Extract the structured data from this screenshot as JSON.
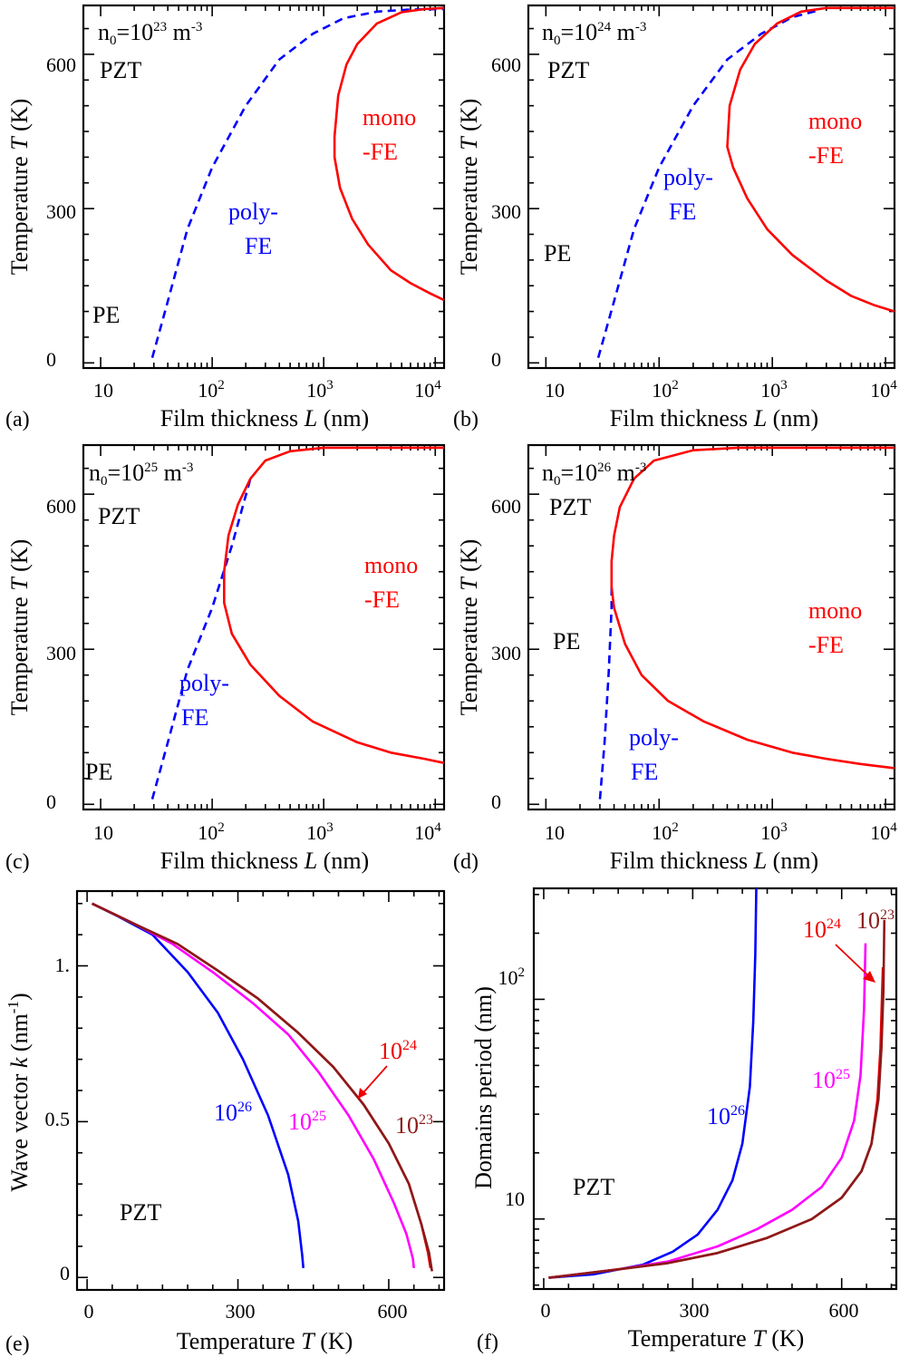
{
  "chart_data": [
    {
      "panel": "(a)",
      "type": "line",
      "xlabel": "Film thickness  L (nm)",
      "ylabel": "Temperature  T (K)",
      "x_scale": "log",
      "xlim": [
        7,
        12000
      ],
      "ylim": [
        -10,
        695
      ],
      "x_ticks": [
        "10",
        "10^2",
        "10^3",
        "10^4"
      ],
      "y_ticks": [
        "0",
        "300",
        "600"
      ],
      "grid": false,
      "texts": {
        "conc": "n0=10^23 m^-3",
        "mat": "PZT",
        "pe": "PE",
        "poly1": "poly-",
        "poly2": "FE",
        "mono1": "mono",
        "mono2": "-FE"
      },
      "series": [
        {
          "style": "dashed",
          "color": "#0000ff",
          "points": [
            [
              29,
              10
            ],
            [
              40,
              120
            ],
            [
              60,
              260
            ],
            [
              100,
              380
            ],
            [
              200,
              500
            ],
            [
              400,
              590
            ],
            [
              800,
              640
            ],
            [
              1500,
              670
            ],
            [
              3000,
              683
            ],
            [
              6000,
              687
            ],
            [
              12000,
              688
            ]
          ]
        },
        {
          "style": "solid",
          "color": "#ff0000",
          "points": [
            [
              12000,
              122
            ],
            [
              9000,
              135
            ],
            [
              6000,
              155
            ],
            [
              4000,
              180
            ],
            [
              2500,
              230
            ],
            [
              1800,
              280
            ],
            [
              1400,
              340
            ],
            [
              1250,
              400
            ],
            [
              1250,
              440
            ],
            [
              1350,
              520
            ],
            [
              1600,
              580
            ],
            [
              2000,
              620
            ],
            [
              3000,
              660
            ],
            [
              5000,
              682
            ],
            [
              8000,
              688
            ],
            [
              12000,
              690
            ]
          ]
        }
      ]
    },
    {
      "panel": "(b)",
      "type": "line",
      "xlabel": "Film thickness  L (nm)",
      "ylabel": "Temperature  T (K)",
      "x_scale": "log",
      "xlim": [
        7,
        12000
      ],
      "ylim": [
        -10,
        695
      ],
      "x_ticks": [
        "10",
        "10^2",
        "10^3",
        "10^4"
      ],
      "y_ticks": [
        "0",
        "300",
        "600"
      ],
      "grid": false,
      "texts": {
        "conc": "n0=10^24 m^-3",
        "mat": "PZT",
        "pe": "PE",
        "poly1": "poly-",
        "poly2": "FE",
        "mono1": "mono",
        "mono2": "-FE"
      },
      "series": [
        {
          "style": "dashed",
          "color": "#0000ff",
          "points": [
            [
              29,
              10
            ],
            [
              40,
              120
            ],
            [
              60,
              260
            ],
            [
              100,
              380
            ],
            [
              200,
              500
            ],
            [
              400,
              590
            ],
            [
              800,
              640
            ],
            [
              1500,
              672
            ],
            [
              2500,
              685
            ]
          ]
        },
        {
          "style": "solid",
          "color": "#ff0000",
          "points": [
            [
              12000,
              100
            ],
            [
              8000,
              112
            ],
            [
              5000,
              130
            ],
            [
              3000,
              160
            ],
            [
              1500,
              210
            ],
            [
              900,
              260
            ],
            [
              600,
              320
            ],
            [
              450,
              380
            ],
            [
              400,
              420
            ],
            [
              420,
              500
            ],
            [
              520,
              570
            ],
            [
              700,
              620
            ],
            [
              1100,
              660
            ],
            [
              1800,
              683
            ],
            [
              3000,
              690
            ],
            [
              12000,
              690
            ]
          ]
        }
      ]
    },
    {
      "panel": "(c)",
      "type": "line",
      "xlabel": "Film thickness  L (nm)",
      "ylabel": "Temperature  T (K)",
      "x_scale": "log",
      "xlim": [
        7,
        12000
      ],
      "ylim": [
        -10,
        695
      ],
      "x_ticks": [
        "10",
        "10^2",
        "10^3",
        "10^4"
      ],
      "y_ticks": [
        "0",
        "300",
        "600"
      ],
      "grid": false,
      "texts": {
        "conc": "n0=10^25 m^-3",
        "mat": "PZT",
        "pe": "PE",
        "poly1": "poly-",
        "poly2": "FE",
        "mono1": "mono",
        "mono2": "-FE"
      },
      "series": [
        {
          "style": "dashed",
          "color": "#0000ff",
          "points": [
            [
              29,
              10
            ],
            [
              40,
              120
            ],
            [
              60,
              260
            ],
            [
              100,
              380
            ],
            [
              150,
              500
            ],
            [
              220,
              630
            ]
          ]
        },
        {
          "style": "solid",
          "color": "#ff0000",
          "points": [
            [
              12000,
              80
            ],
            [
              8000,
              88
            ],
            [
              4000,
              100
            ],
            [
              2000,
              120
            ],
            [
              800,
              160
            ],
            [
              400,
              210
            ],
            [
              220,
              270
            ],
            [
              150,
              330
            ],
            [
              128,
              390
            ],
            [
              128,
              450
            ],
            [
              140,
              520
            ],
            [
              170,
              580
            ],
            [
              220,
              630
            ],
            [
              300,
              665
            ],
            [
              500,
              683
            ],
            [
              1000,
              690
            ],
            [
              12000,
              690
            ]
          ]
        }
      ]
    },
    {
      "panel": "(d)",
      "type": "line",
      "xlabel": "Film thickness  L (nm)",
      "ylabel": "Temperature  T (K)",
      "x_scale": "log",
      "xlim": [
        7,
        12000
      ],
      "ylim": [
        -10,
        695
      ],
      "x_ticks": [
        "10",
        "10^2",
        "10^3",
        "10^4"
      ],
      "y_ticks": [
        "0",
        "300",
        "600"
      ],
      "grid": false,
      "texts": {
        "conc": "n0=10^26 m^-3",
        "mat": "PZT",
        "pe": "PE",
        "poly1": "poly-",
        "poly2": "FE",
        "mono1": "mono",
        "mono2": "-FE"
      },
      "series": [
        {
          "style": "dashed",
          "color": "#0000ff",
          "points": [
            [
              30,
              10
            ],
            [
              33,
              120
            ],
            [
              36,
              260
            ],
            [
              38,
              380
            ],
            [
              38,
              420
            ]
          ]
        },
        {
          "style": "solid",
          "color": "#ff0000",
          "points": [
            [
              12000,
              70
            ],
            [
              6000,
              78
            ],
            [
              3000,
              88
            ],
            [
              1500,
              100
            ],
            [
              600,
              125
            ],
            [
              250,
              160
            ],
            [
              120,
              200
            ],
            [
              70,
              250
            ],
            [
              50,
              310
            ],
            [
              40,
              380
            ],
            [
              38,
              420
            ],
            [
              38,
              470
            ],
            [
              40,
              520
            ],
            [
              45,
              575
            ],
            [
              60,
              630
            ],
            [
              90,
              665
            ],
            [
              200,
              685
            ],
            [
              500,
              690
            ],
            [
              12000,
              690
            ]
          ]
        }
      ]
    },
    {
      "panel": "(e)",
      "type": "line",
      "xlabel": "Temperature  T (K)",
      "ylabel": "Wave vector k  (nm^-1)",
      "x_scale": "linear",
      "xlim": [
        -20,
        710
      ],
      "ylim": [
        -0.04,
        1.24
      ],
      "x_ticks": [
        "0",
        "300",
        "600"
      ],
      "y_ticks": [
        "0",
        "0.5",
        "1."
      ],
      "grid": false,
      "texts": {
        "mat": "PZT",
        "l26": "10^26",
        "l25": "10^25",
        "l24": "10^24",
        "l23": "10^23"
      },
      "series": [
        {
          "name": "10^26",
          "color": "#0000ff",
          "points": [
            [
              10,
              1.2
            ],
            [
              60,
              1.16
            ],
            [
              130,
              1.1
            ],
            [
              200,
              0.98
            ],
            [
              260,
              0.85
            ],
            [
              310,
              0.7
            ],
            [
              360,
              0.52
            ],
            [
              400,
              0.33
            ],
            [
              420,
              0.18
            ],
            [
              428,
              0.07
            ],
            [
              430,
              0.03
            ]
          ]
        },
        {
          "name": "10^25",
          "color": "#ff00ff",
          "points": [
            [
              10,
              1.2
            ],
            [
              100,
              1.13
            ],
            [
              170,
              1.07
            ],
            [
              250,
              0.98
            ],
            [
              330,
              0.88
            ],
            [
              400,
              0.78
            ],
            [
              460,
              0.66
            ],
            [
              520,
              0.52
            ],
            [
              570,
              0.38
            ],
            [
              610,
              0.24
            ],
            [
              635,
              0.14
            ],
            [
              648,
              0.06
            ],
            [
              650,
              0.03
            ]
          ]
        },
        {
          "name": "10^24",
          "color": "#ee0000",
          "points": [
            [
              10,
              1.2
            ],
            [
              100,
              1.13
            ],
            [
              180,
              1.07
            ],
            [
              260,
              0.985
            ],
            [
              340,
              0.895
            ],
            [
              420,
              0.785
            ],
            [
              490,
              0.675
            ],
            [
              550,
              0.555
            ],
            [
              600,
              0.43
            ],
            [
              640,
              0.3
            ],
            [
              665,
              0.17
            ],
            [
              678,
              0.08
            ],
            [
              683,
              0.03
            ]
          ]
        },
        {
          "name": "10^23",
          "color": "#8b1a1a",
          "points": [
            [
              10,
              1.2
            ],
            [
              100,
              1.13
            ],
            [
              180,
              1.07
            ],
            [
              260,
              0.985
            ],
            [
              340,
              0.895
            ],
            [
              420,
              0.785
            ],
            [
              490,
              0.675
            ],
            [
              550,
              0.555
            ],
            [
              600,
              0.43
            ],
            [
              640,
              0.3
            ],
            [
              665,
              0.17
            ],
            [
              680,
              0.08
            ],
            [
              686,
              0.02
            ]
          ]
        }
      ]
    },
    {
      "panel": "(f)",
      "type": "line",
      "xlabel": "Temperature  T (K)",
      "ylabel": "Domains period  (nm)",
      "x_scale": "linear",
      "y_scale": "log",
      "xlim": [
        -20,
        710
      ],
      "ylim": [
        4.8,
        320
      ],
      "x_ticks": [
        "0",
        "300",
        "600"
      ],
      "y_ticks": [
        "10",
        "10^2"
      ],
      "grid": false,
      "texts": {
        "mat": "PZT",
        "l26": "10^26",
        "l25": "10^25",
        "l24": "10^24",
        "l23": "10^23"
      },
      "series": [
        {
          "name": "10^26",
          "color": "#0000ff",
          "points": [
            [
              10,
              5.4
            ],
            [
              100,
              5.6
            ],
            [
              200,
              6.2
            ],
            [
              260,
              7.1
            ],
            [
              310,
              8.5
            ],
            [
              350,
              11
            ],
            [
              380,
              15
            ],
            [
              400,
              22
            ],
            [
              415,
              40
            ],
            [
              422,
              80
            ],
            [
              426,
              160
            ],
            [
              428,
              320
            ]
          ]
        },
        {
          "name": "10^25",
          "color": "#ff00ff",
          "points": [
            [
              10,
              5.4
            ],
            [
              150,
              5.9
            ],
            [
              250,
              6.4
            ],
            [
              350,
              7.5
            ],
            [
              430,
              9
            ],
            [
              500,
              11
            ],
            [
              560,
              14
            ],
            [
              600,
              19
            ],
            [
              625,
              28
            ],
            [
              638,
              45
            ],
            [
              645,
              90
            ],
            [
              648,
              180
            ]
          ]
        },
        {
          "name": "10^24",
          "color": "#ee0000",
          "points": [
            [
              10,
              5.4
            ],
            [
              150,
              5.9
            ],
            [
              250,
              6.3
            ],
            [
              350,
              7.0
            ],
            [
              450,
              8.2
            ],
            [
              540,
              10
            ],
            [
              600,
              12.5
            ],
            [
              640,
              16.5
            ],
            [
              660,
              22
            ],
            [
              672,
              35
            ],
            [
              678,
              60
            ],
            [
              681,
              100
            ],
            [
              683,
              140
            ]
          ]
        },
        {
          "name": "10^23",
          "color": "#8b1a1a",
          "points": [
            [
              10,
              5.4
            ],
            [
              150,
              5.9
            ],
            [
              250,
              6.3
            ],
            [
              350,
              7.0
            ],
            [
              450,
              8.2
            ],
            [
              540,
              10
            ],
            [
              600,
              12.5
            ],
            [
              640,
              16.5
            ],
            [
              660,
              22
            ],
            [
              674,
              35
            ],
            [
              680,
              60
            ],
            [
              684,
              110
            ],
            [
              686,
              230
            ]
          ]
        }
      ]
    }
  ]
}
